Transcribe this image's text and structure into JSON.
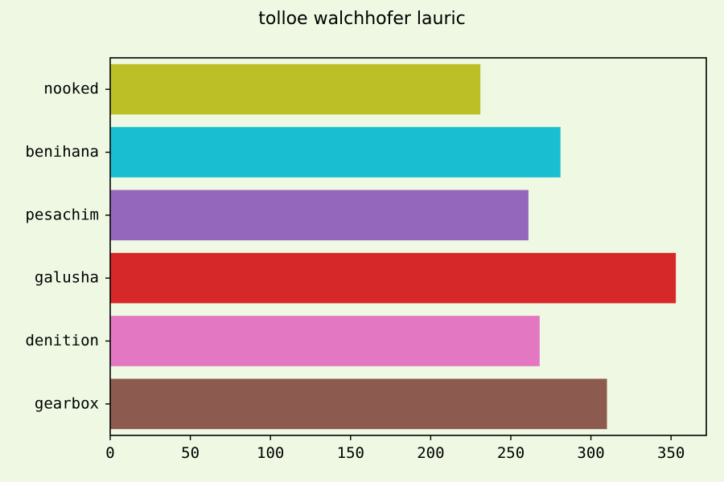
{
  "chart_data": {
    "type": "bar",
    "orientation": "horizontal",
    "title": "tolloe walchhofer lauric",
    "xlabel": "",
    "ylabel": "",
    "categories": [
      "nooked",
      "benihana",
      "pesachim",
      "galusha",
      "denition",
      "gearbox"
    ],
    "values": [
      231,
      281,
      261,
      353,
      268,
      310
    ],
    "colors": [
      "#bcbf25",
      "#19bfd0",
      "#9467bd",
      "#d62828",
      "#e377c2",
      "#8c5a4e"
    ],
    "xlim": [
      0,
      372
    ],
    "xticks": [
      0,
      50,
      100,
      150,
      200,
      250,
      300,
      350
    ],
    "grid": false,
    "legend": "none",
    "background_color": "#eef8e2"
  }
}
